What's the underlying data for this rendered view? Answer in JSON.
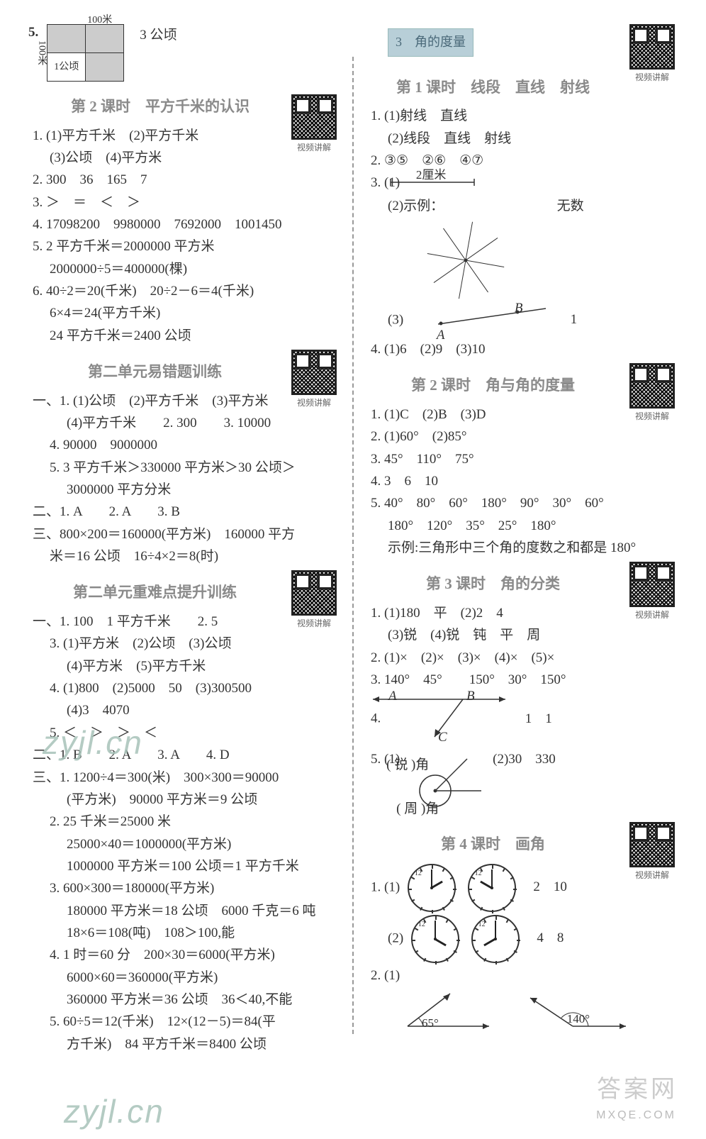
{
  "top_q5": {
    "num": "5.",
    "label_top": "100米",
    "label_left": "100米",
    "label_cell": "1公顷",
    "answer": "3 公顷"
  },
  "left": {
    "s1": {
      "title": "第 2 课时　平方千米的认识",
      "qr": "视频讲解",
      "q1": "1. (1)平方千米　(2)平方千米",
      "q1b": "(3)公顷　(4)平方米",
      "q2": "2. 300　36　165　7",
      "q3": "3. ＞　＝　＜　＞",
      "q4": "4. 17098200　9980000　7692000　1001450",
      "q5a": "5. 2 平方千米＝2000000 平方米",
      "q5b": "2000000÷5＝400000(棵)",
      "q6a": "6. 40÷2＝20(千米)　20÷2－6＝4(千米)",
      "q6b": "6×4＝24(平方千米)",
      "q6c": "24 平方千米＝2400 公顷"
    },
    "s2": {
      "title": "第二单元易错题训练",
      "qr": "视频讲解",
      "yi": "一、1. (1)公顷　(2)平方千米　(3)平方米",
      "yi_b": "(4)平方千米　　2. 300　　3. 10000",
      "yi_4": "4. 90000　9000000",
      "yi_5a": "5. 3 平方千米＞330000 平方米＞30 公顷＞",
      "yi_5b": "3000000 平方分米",
      "er": "二、1. A　　2. A　　3. B",
      "san_a": "三、800×200＝160000(平方米)　160000 平方",
      "san_b": "米＝16 公顷　16÷4×2＝8(时)"
    },
    "s3": {
      "title": "第二单元重难点提升训练",
      "qr": "视频讲解",
      "yi_1": "一、1. 100　1 平方千米　　2. 5",
      "yi_3": "3. (1)平方米　(2)公顷　(3)公顷",
      "yi_3b": "(4)平方米　(5)平方千米",
      "yi_4": "4. (1)800　(2)5000　50　(3)300500",
      "yi_4b": "(4)3　4070",
      "yi_5": "5. ＜　＞　＞　＜",
      "er": "二、1. B　　2. A　　3. A　　4. D",
      "san_1a": "三、1. 1200÷4＝300(米)　300×300＝90000",
      "san_1b": "(平方米)　90000 平方米＝9 公顷",
      "san_2a": "2. 25 千米＝25000 米",
      "san_2b": "25000×40＝1000000(平方米)",
      "san_2c": "1000000 平方米＝100 公顷＝1 平方千米",
      "san_3a": "3. 600×300＝180000(平方米)",
      "san_3b": "180000 平方米＝18 公顷　6000 千克＝6 吨",
      "san_3c": "18×6＝108(吨)　108＞100,能",
      "san_4a": "4. 1 时＝60 分　200×30＝6000(平方米)",
      "san_4b": "6000×60＝360000(平方米)",
      "san_4c": "360000 平方米＝36 公顷　36＜40,不能",
      "san_5a": "5. 60÷5＝12(千米)　12×(12－5)＝84(平",
      "san_5b": "方千米)　84 平方千米＝8400 公顷"
    }
  },
  "right": {
    "unit": "3　角的度量",
    "s1": {
      "title": "第 1 课时　线段　直线　射线",
      "qr": "视频讲解",
      "q1a": "1. (1)射线　直线",
      "q1b": "(2)线段　直线　射线",
      "q2": "2. ③⑤　②⑥　④⑦",
      "q3_1": "3. (1)",
      "q3_1_label": "2厘米",
      "q3_2": "(2)示例：",
      "q3_2_ans": "无数",
      "q3_3": "(3)",
      "q3_3_a": "A",
      "q3_3_b": "B",
      "q3_3_ans": "1",
      "q4": "4. (1)6　(2)9　(3)10"
    },
    "s2": {
      "title": "第 2 课时　角与角的度量",
      "qr": "视频讲解",
      "q1": "1. (1)C　(2)B　(3)D",
      "q2": "2. (1)60°　(2)85°",
      "q3": "3. 45°　110°　75°",
      "q4": "4. 3　6　10",
      "q5a": "5. 40°　80°　60°　180°　90°　30°　60°",
      "q5b": "180°　120°　35°　25°　180°",
      "q5c": "示例:三角形中三个角的度数之和都是 180°"
    },
    "s3": {
      "title": "第 3 课时　角的分类",
      "qr": "视频讲解",
      "q1a": "1. (1)180　平　(2)2　4",
      "q1b": "(3)锐　(4)锐　钝　平　周",
      "q2": "2. (1)×　(2)×　(3)×　(4)×　(5)×",
      "q3": "3. 140°　45°　　150°　30°　150°",
      "q4": "4.",
      "q4_a": "A",
      "q4_b": "B",
      "q4_c": "C",
      "q4_ans": "1　1",
      "q5_1": "5. (1)",
      "q5_1a": "( 锐 )角",
      "q5_1b": "( 周 )角",
      "q5_2": "(2)30　330"
    },
    "s4": {
      "title": "第 4 课时　画角",
      "qr": "视频讲解",
      "q1_1": "1. (1)",
      "q1_1_ans": "2　10",
      "q1_2": "(2)",
      "q1_2_ans": "4　8",
      "q2": "2. (1)",
      "q2_a1": "65°",
      "q2_a2": "140°"
    }
  },
  "clocks": {
    "c1": {
      "hour_deg": 60,
      "min_deg": 0
    },
    "c2": {
      "hour_deg": 300,
      "min_deg": 0
    },
    "c3": {
      "hour_deg": 120,
      "min_deg": 0
    },
    "c4": {
      "hour_deg": 240,
      "min_deg": 0
    }
  },
  "watermarks": {
    "w1": "zyjl.cn",
    "w2": "zyjl.cn",
    "stamp": "答案网",
    "mxqe": "MXQE.COM"
  },
  "colors": {
    "text": "#333333",
    "title": "#8a8a8a",
    "divider": "#999999",
    "unit_bg": "#b8cfd8",
    "watermark": "#a8c3b9"
  }
}
